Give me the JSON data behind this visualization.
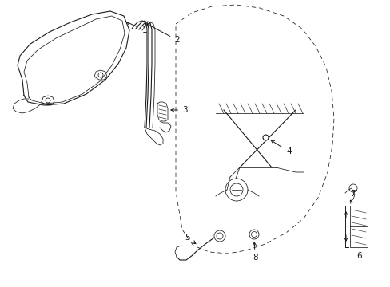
{
  "bg_color": "#ffffff",
  "line_color": "#1a1a1a",
  "fig_width": 4.89,
  "fig_height": 3.6,
  "dpi": 100,
  "lw": 0.8,
  "lw_thin": 0.55,
  "arrow_lw": 0.7,
  "fs": 7.5
}
